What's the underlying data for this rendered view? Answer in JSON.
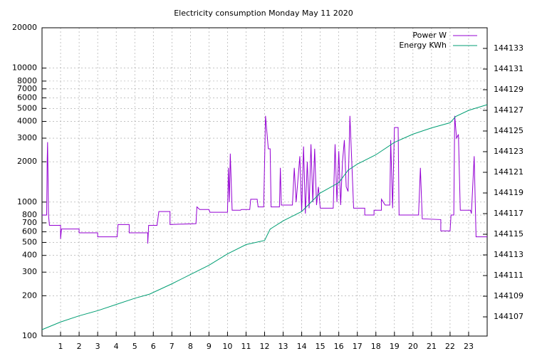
{
  "chart_data": {
    "type": "line",
    "title": "Electricity consumption Monday May 11 2020",
    "xlim": [
      0,
      24
    ],
    "xticks": [
      1,
      2,
      3,
      4,
      5,
      6,
      7,
      8,
      9,
      10,
      11,
      12,
      13,
      14,
      15,
      16,
      17,
      18,
      19,
      20,
      21,
      22,
      23
    ],
    "ylim": [
      100,
      20000
    ],
    "ylog": true,
    "yticks": [
      100,
      200,
      300,
      400,
      500,
      600,
      700,
      800,
      1000,
      2000,
      3000,
      4000,
      5000,
      6000,
      7000,
      8000,
      10000,
      20000
    ],
    "y2lim": [
      144105.14,
      144135
    ],
    "y2ticks": [
      144107,
      144109,
      144111,
      144113,
      144115,
      144117,
      144119,
      144121,
      144123,
      144125,
      144127,
      144129,
      144131,
      144133
    ],
    "grid": true,
    "legend": "top-right",
    "series": [
      {
        "name": "Power W",
        "color": "#9400d3",
        "x": [
          0,
          0.25,
          0.28,
          0.3,
          0.35,
          0.4,
          1,
          1,
          1.05,
          2,
          2,
          3,
          3,
          4.05,
          4.1,
          4.7,
          4.7,
          5.7,
          5.7,
          5.75,
          6.2,
          6.3,
          6.9,
          6.9,
          8.3,
          8.35,
          8.5,
          9,
          9.05,
          10,
          10.05,
          10.1,
          10.15,
          10.25,
          10.7,
          10.75,
          11.2,
          11.25,
          11.6,
          11.65,
          11.95,
          12,
          12.05,
          12.2,
          12.3,
          12.35,
          12.8,
          12.85,
          12.9,
          13.5,
          13.6,
          13.7,
          13.9,
          14,
          14.1,
          14.2,
          14.3,
          14.4,
          14.5,
          14.6,
          14.7,
          14.8,
          14.9,
          15,
          15.7,
          15.8,
          15.9,
          16,
          16.1,
          16.2,
          16.3,
          16.4,
          16.5,
          16.6,
          16.7,
          16.8,
          17.4,
          17.4,
          17.9,
          17.9,
          18.3,
          18.3,
          18.5,
          18.75,
          18.8,
          18.9,
          19,
          19.2,
          19.25,
          20.3,
          20.4,
          20.5,
          21.5,
          21.5,
          22,
          22.05,
          22.2,
          22.25,
          22.35,
          22.45,
          22.55,
          23.1,
          23.15,
          23.3,
          23.4,
          24
        ],
        "values": [
          800,
          800,
          2100,
          2800,
          800,
          670,
          670,
          530,
          630,
          630,
          590,
          590,
          550,
          550,
          680,
          680,
          590,
          590,
          490,
          670,
          670,
          850,
          850,
          680,
          690,
          920,
          880,
          880,
          840,
          840,
          1800,
          1000,
          2300,
          870,
          870,
          880,
          880,
          1050,
          1050,
          920,
          920,
          2000,
          4400,
          2500,
          2500,
          920,
          920,
          1800,
          950,
          950,
          1800,
          1000,
          2200,
          850,
          2600,
          820,
          2000,
          900,
          2700,
          1000,
          2500,
          950,
          1300,
          900,
          900,
          2700,
          1000,
          2400,
          950,
          2000,
          2900,
          1300,
          1200,
          4400,
          2000,
          900,
          900,
          800,
          800,
          870,
          870,
          1050,
          950,
          950,
          2900,
          900,
          3600,
          3600,
          800,
          800,
          1800,
          750,
          740,
          610,
          610,
          800,
          800,
          4400,
          3000,
          3200,
          870,
          870,
          820,
          2200,
          550,
          550
        ]
      },
      {
        "name": "Energy KWh",
        "color": "#009e73",
        "axis": "y2",
        "x": [
          0,
          1,
          2,
          3,
          4,
          5,
          5.8,
          7,
          8,
          9,
          10,
          11,
          12,
          12.3,
          13,
          14,
          15,
          16,
          16.5,
          17,
          18,
          19,
          20,
          21,
          22,
          22.3,
          23,
          24
        ],
        "values": [
          144105.76,
          144106.5,
          144107.1,
          144107.6,
          144108.2,
          144108.8,
          144109.2,
          144110.2,
          144111.1,
          144112,
          144113.1,
          144114,
          144114.4,
          144115.5,
          144116.3,
          144117.2,
          144119,
          144120,
          144121.2,
          144121.8,
          144122.7,
          144123.9,
          144124.7,
          144125.3,
          144125.8,
          144126.4,
          144127,
          144127.55
        ]
      }
    ]
  }
}
